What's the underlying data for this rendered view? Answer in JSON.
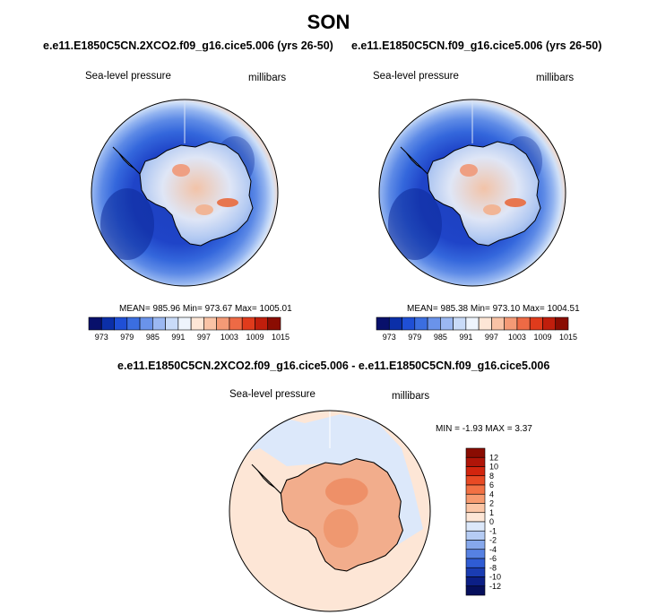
{
  "season": "SON",
  "panels": [
    {
      "case": "e.e11.E1850C5CN.2XCO2.f09_g16.cice5.006 (yrs 26-50)",
      "variable": "Sea-level pressure",
      "units": "millibars",
      "stats": "MEAN= 985.96  Min= 973.67  Max= 1005.01"
    },
    {
      "case": "e.e11.E1850C5CN.f09_g16.cice5.006 (yrs 26-50)",
      "variable": "Sea-level pressure",
      "units": "millibars",
      "stats": "MEAN= 985.38  Min= 973.10  Max= 1004.51"
    }
  ],
  "abs_colorbar": {
    "ticks": [
      "973",
      "979",
      "985",
      "991",
      "997",
      "1003",
      "1009",
      "1015"
    ],
    "colors": [
      "#08106b",
      "#0b2fa8",
      "#1f4fd6",
      "#3b6ee0",
      "#6a93ea",
      "#9bb8f2",
      "#c9dbf8",
      "#eef4fc",
      "#fde6d6",
      "#f9c3a6",
      "#f49a76",
      "#ee6a45",
      "#e03b1c",
      "#c01e0c",
      "#8a0c02"
    ]
  },
  "diff": {
    "title": "e.e11.E1850C5CN.2XCO2.f09_g16.cice5.006 - e.e11.E1850C5CN.f09_g16.cice5.006",
    "variable": "Sea-level pressure",
    "units": "millibars",
    "stats": "MIN =  -1.93 MAX =   3.37",
    "colorbar_ticks": [
      "12",
      "10",
      "8",
      "6",
      "4",
      "2",
      "1",
      "0",
      "-1",
      "-2",
      "-4",
      "-6",
      "-8",
      "-10",
      "-12"
    ],
    "colorbar_colors": [
      "#8a0c02",
      "#b01508",
      "#d2250e",
      "#e84a24",
      "#f27144",
      "#f79b70",
      "#fbc6a6",
      "#fde6d6",
      "#dce8fa",
      "#b5ccf4",
      "#86a8ec",
      "#5681e2",
      "#2f5cd4",
      "#1a3cb2",
      "#0c1f86",
      "#060f5c"
    ]
  }
}
